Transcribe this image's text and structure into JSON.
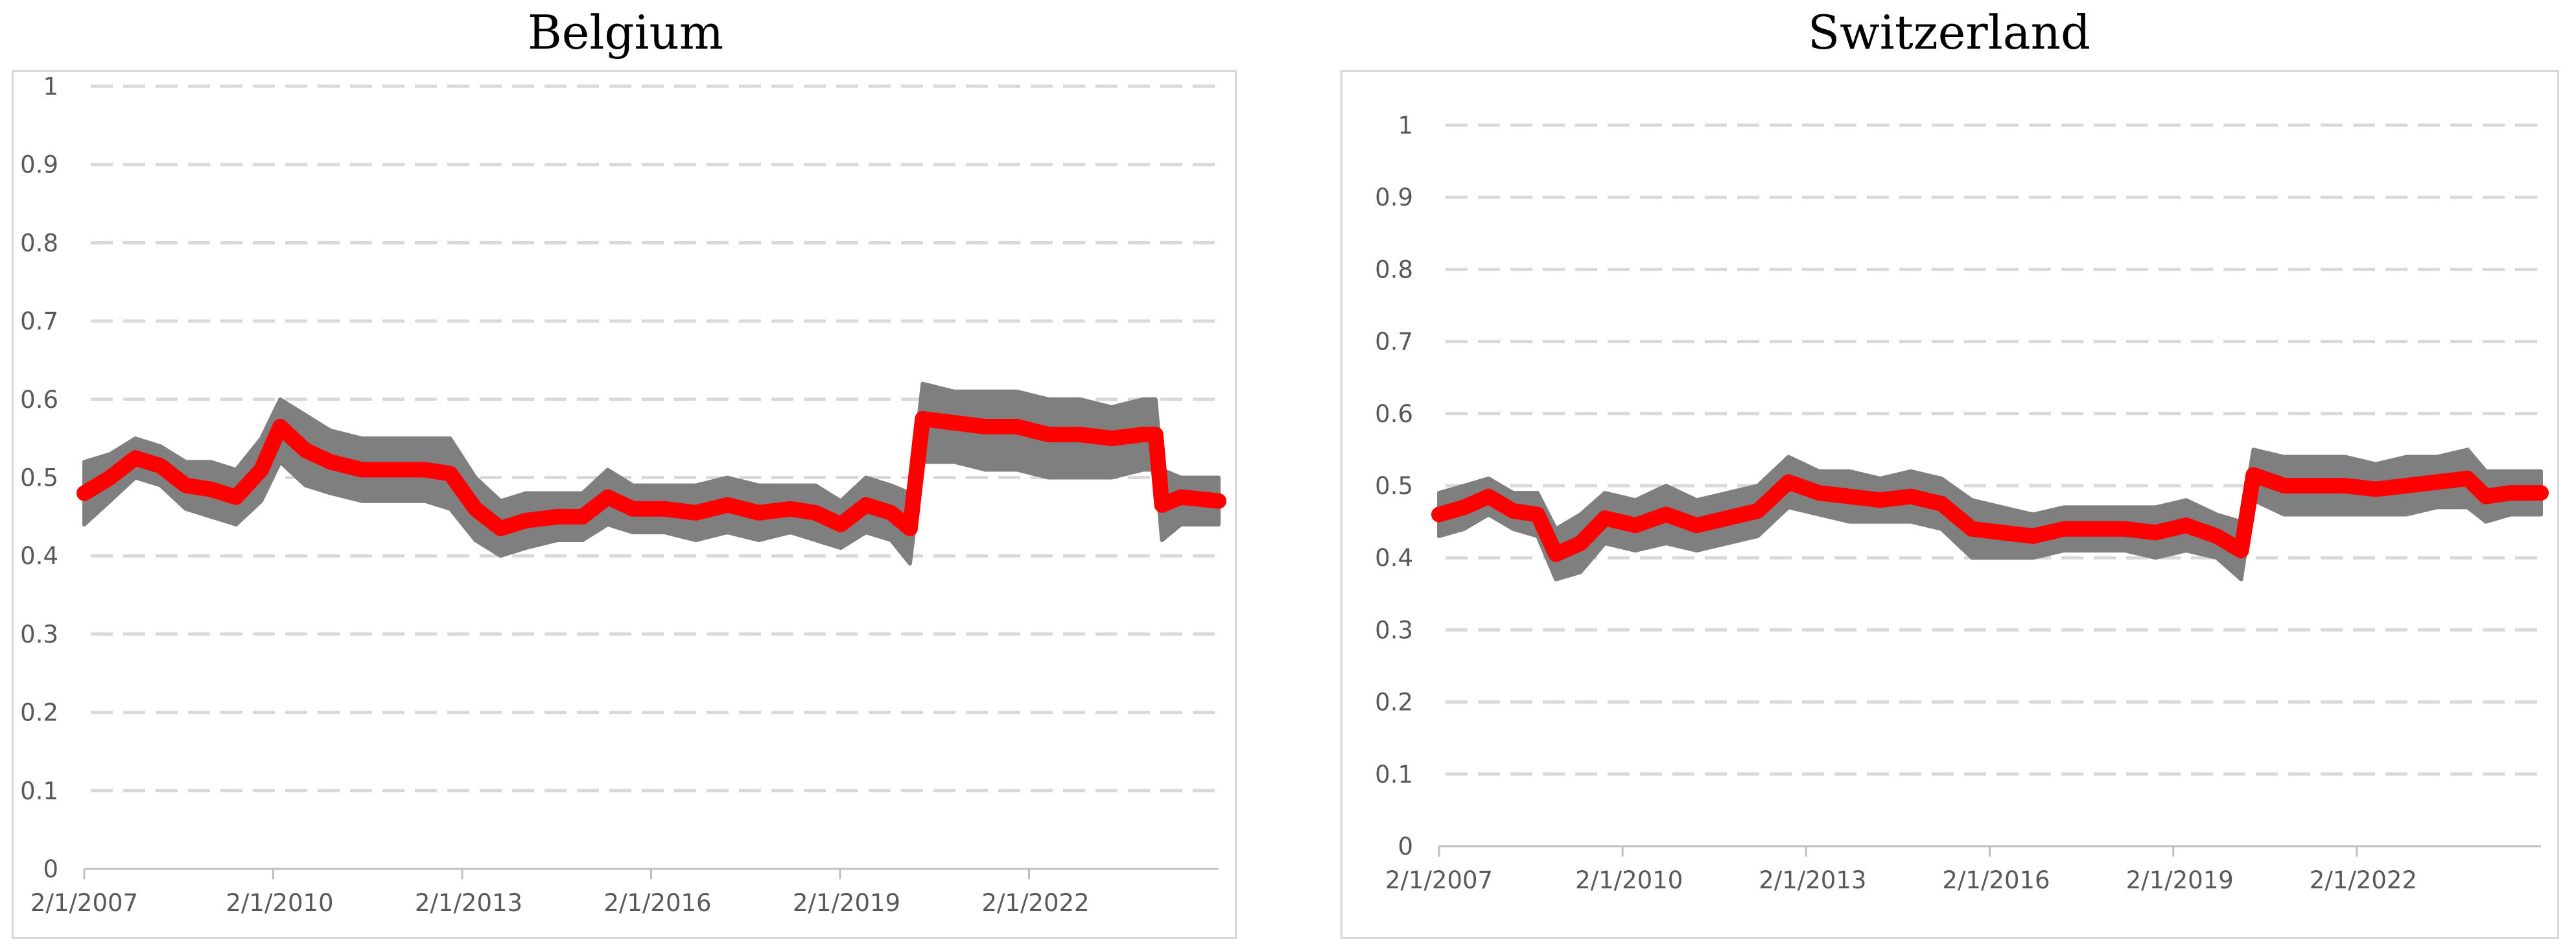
{
  "chart_data": [
    {
      "type": "line",
      "title": "Belgium",
      "xlabel": "",
      "ylabel": "",
      "ylim": [
        0,
        1
      ],
      "yticks": [
        "0",
        "0.1",
        "0.2",
        "0.3",
        "0.4",
        "0.5",
        "0.6",
        "0.7",
        "0.8",
        "0.9",
        "1"
      ],
      "xticks": [
        "2/1/2007",
        "2/1/2010",
        "2/1/2013",
        "2/1/2016",
        "2/1/2019",
        "2/1/2022"
      ],
      "xlim": [
        2007.09,
        2025.1
      ],
      "grid": true,
      "colors": {
        "band": "#7f7f7f",
        "line": "#ff0000",
        "grid": "#d9d9d9",
        "axis": "#bfbfbf"
      },
      "band": [
        [
          2007.09,
          0.44,
          0.52
        ],
        [
          2007.5,
          0.47,
          0.53
        ],
        [
          2007.9,
          0.5,
          0.55
        ],
        [
          2008.3,
          0.49,
          0.54
        ],
        [
          2008.7,
          0.46,
          0.52
        ],
        [
          2009.1,
          0.45,
          0.52
        ],
        [
          2009.5,
          0.44,
          0.51
        ],
        [
          2009.9,
          0.47,
          0.55
        ],
        [
          2010.2,
          0.52,
          0.6
        ],
        [
          2010.6,
          0.49,
          0.58
        ],
        [
          2011.0,
          0.48,
          0.56
        ],
        [
          2011.5,
          0.47,
          0.55
        ],
        [
          2012.0,
          0.47,
          0.55
        ],
        [
          2012.5,
          0.47,
          0.55
        ],
        [
          2012.9,
          0.46,
          0.55
        ],
        [
          2013.3,
          0.42,
          0.5
        ],
        [
          2013.7,
          0.4,
          0.47
        ],
        [
          2014.1,
          0.41,
          0.48
        ],
        [
          2014.6,
          0.42,
          0.48
        ],
        [
          2015.0,
          0.42,
          0.48
        ],
        [
          2015.4,
          0.44,
          0.51
        ],
        [
          2015.8,
          0.43,
          0.49
        ],
        [
          2016.3,
          0.43,
          0.49
        ],
        [
          2016.8,
          0.42,
          0.49
        ],
        [
          2017.3,
          0.43,
          0.5
        ],
        [
          2017.8,
          0.42,
          0.49
        ],
        [
          2018.3,
          0.43,
          0.49
        ],
        [
          2018.7,
          0.42,
          0.49
        ],
        [
          2019.1,
          0.41,
          0.47
        ],
        [
          2019.5,
          0.43,
          0.5
        ],
        [
          2019.9,
          0.42,
          0.49
        ],
        [
          2020.2,
          0.39,
          0.48
        ],
        [
          2020.4,
          0.52,
          0.62
        ],
        [
          2020.9,
          0.52,
          0.61
        ],
        [
          2021.4,
          0.51,
          0.61
        ],
        [
          2021.9,
          0.51,
          0.61
        ],
        [
          2022.4,
          0.5,
          0.6
        ],
        [
          2022.9,
          0.5,
          0.6
        ],
        [
          2023.4,
          0.5,
          0.59
        ],
        [
          2023.9,
          0.51,
          0.6
        ],
        [
          2024.1,
          0.51,
          0.6
        ],
        [
          2024.2,
          0.42,
          0.51
        ],
        [
          2024.5,
          0.44,
          0.5
        ],
        [
          2025.1,
          0.44,
          0.5
        ]
      ],
      "series": [
        {
          "x": [
            2007.09,
            2007.5,
            2007.9,
            2008.3,
            2008.7,
            2009.1,
            2009.5,
            2009.9,
            2010.2,
            2010.6,
            2011.0,
            2011.5,
            2012.0,
            2012.5,
            2012.9,
            2013.3,
            2013.7,
            2014.1,
            2014.6,
            2015.0,
            2015.4,
            2015.8,
            2016.3,
            2016.8,
            2017.3,
            2017.8,
            2018.3,
            2018.7,
            2019.1,
            2019.5,
            2019.9,
            2020.2,
            2020.4,
            2020.9,
            2021.4,
            2021.9,
            2022.4,
            2022.9,
            2023.4,
            2023.9,
            2024.1,
            2024.2,
            2024.5,
            2025.1
          ],
          "values": [
            0.48,
            0.5,
            0.525,
            0.515,
            0.49,
            0.485,
            0.475,
            0.51,
            0.565,
            0.535,
            0.52,
            0.51,
            0.51,
            0.51,
            0.505,
            0.46,
            0.435,
            0.445,
            0.45,
            0.45,
            0.475,
            0.46,
            0.46,
            0.455,
            0.465,
            0.455,
            0.46,
            0.455,
            0.44,
            0.465,
            0.455,
            0.435,
            0.575,
            0.57,
            0.565,
            0.565,
            0.555,
            0.555,
            0.55,
            0.555,
            0.555,
            0.465,
            0.475,
            0.47
          ]
        }
      ]
    },
    {
      "type": "line",
      "title": "Switzerland",
      "xlabel": "",
      "ylabel": "",
      "ylim": [
        0,
        1
      ],
      "yticks": [
        "0",
        "0.1",
        "0.2",
        "0.3",
        "0.4",
        "0.5",
        "0.6",
        "0.7",
        "0.8",
        "0.9",
        "1"
      ],
      "xticks": [
        "2/1/2007",
        "2/1/2010",
        "2/1/2013",
        "2/1/2016",
        "2/1/2019",
        "2/1/2022"
      ],
      "xlim": [
        2007.09,
        2025.1
      ],
      "grid": true,
      "colors": {
        "band": "#7f7f7f",
        "line": "#ff0000",
        "grid": "#d9d9d9",
        "axis": "#bfbfbf"
      },
      "band": [
        [
          2007.09,
          0.43,
          0.49
        ],
        [
          2007.5,
          0.44,
          0.5
        ],
        [
          2007.9,
          0.46,
          0.51
        ],
        [
          2008.3,
          0.44,
          0.49
        ],
        [
          2008.7,
          0.43,
          0.49
        ],
        [
          2009.0,
          0.37,
          0.44
        ],
        [
          2009.4,
          0.38,
          0.46
        ],
        [
          2009.8,
          0.42,
          0.49
        ],
        [
          2010.3,
          0.41,
          0.48
        ],
        [
          2010.8,
          0.42,
          0.5
        ],
        [
          2011.3,
          0.41,
          0.48
        ],
        [
          2011.8,
          0.42,
          0.49
        ],
        [
          2012.3,
          0.43,
          0.5
        ],
        [
          2012.8,
          0.47,
          0.54
        ],
        [
          2013.3,
          0.46,
          0.52
        ],
        [
          2013.8,
          0.45,
          0.52
        ],
        [
          2014.3,
          0.45,
          0.51
        ],
        [
          2014.8,
          0.45,
          0.52
        ],
        [
          2015.3,
          0.44,
          0.51
        ],
        [
          2015.8,
          0.4,
          0.48
        ],
        [
          2016.3,
          0.4,
          0.47
        ],
        [
          2016.8,
          0.4,
          0.46
        ],
        [
          2017.3,
          0.41,
          0.47
        ],
        [
          2017.8,
          0.41,
          0.47
        ],
        [
          2018.3,
          0.41,
          0.47
        ],
        [
          2018.8,
          0.4,
          0.47
        ],
        [
          2019.3,
          0.41,
          0.48
        ],
        [
          2019.8,
          0.4,
          0.46
        ],
        [
          2020.2,
          0.37,
          0.45
        ],
        [
          2020.4,
          0.48,
          0.55
        ],
        [
          2020.9,
          0.46,
          0.54
        ],
        [
          2021.4,
          0.46,
          0.54
        ],
        [
          2021.9,
          0.46,
          0.54
        ],
        [
          2022.4,
          0.46,
          0.53
        ],
        [
          2022.9,
          0.46,
          0.54
        ],
        [
          2023.4,
          0.47,
          0.54
        ],
        [
          2023.9,
          0.47,
          0.55
        ],
        [
          2024.2,
          0.45,
          0.52
        ],
        [
          2024.6,
          0.46,
          0.52
        ],
        [
          2025.1,
          0.46,
          0.52
        ]
      ],
      "series": [
        {
          "x": [
            2007.09,
            2007.5,
            2007.9,
            2008.3,
            2008.7,
            2009.0,
            2009.4,
            2009.8,
            2010.3,
            2010.8,
            2011.3,
            2011.8,
            2012.3,
            2012.8,
            2013.3,
            2013.8,
            2014.3,
            2014.8,
            2015.3,
            2015.8,
            2016.3,
            2016.8,
            2017.3,
            2017.8,
            2018.3,
            2018.8,
            2019.3,
            2019.8,
            2020.2,
            2020.4,
            2020.9,
            2021.4,
            2021.9,
            2022.4,
            2022.9,
            2023.4,
            2023.9,
            2024.2,
            2024.6,
            2025.1
          ],
          "values": [
            0.46,
            0.47,
            0.485,
            0.465,
            0.46,
            0.405,
            0.42,
            0.455,
            0.445,
            0.46,
            0.445,
            0.455,
            0.465,
            0.505,
            0.49,
            0.485,
            0.48,
            0.485,
            0.475,
            0.44,
            0.435,
            0.43,
            0.44,
            0.44,
            0.44,
            0.435,
            0.445,
            0.43,
            0.41,
            0.515,
            0.5,
            0.5,
            0.5,
            0.495,
            0.5,
            0.505,
            0.51,
            0.485,
            0.49,
            0.49
          ]
        }
      ]
    }
  ]
}
